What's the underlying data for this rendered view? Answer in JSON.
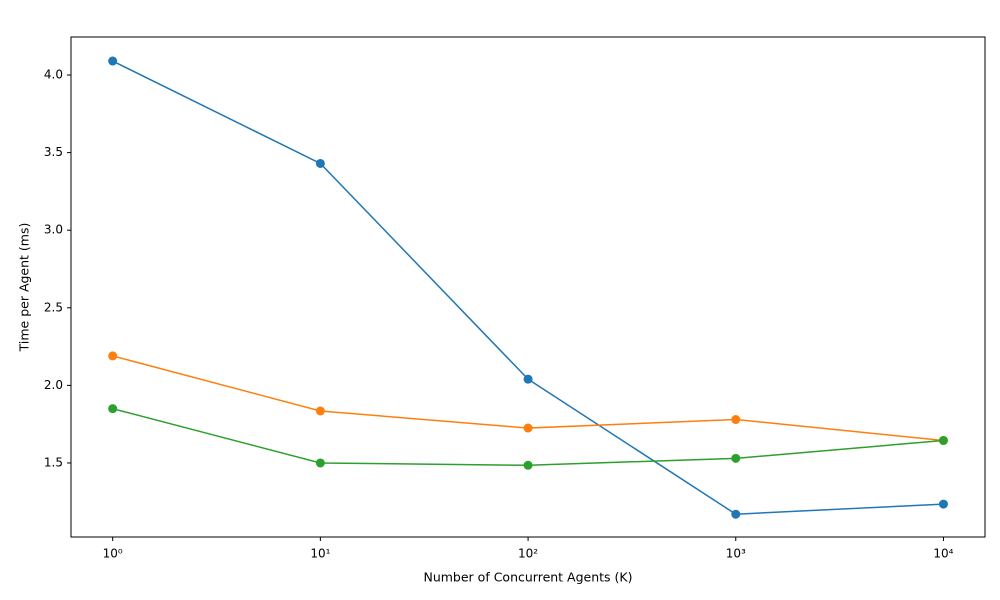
{
  "chart_data": {
    "type": "line",
    "x_label": "Number of Concurrent Agents (K)",
    "y_label": "Time per Agent (ms)",
    "x": [
      1,
      10,
      100,
      1000,
      10000
    ],
    "xscale": "log",
    "xlim": [
      0.63,
      15849
    ],
    "xticks": [
      {
        "value": 1,
        "label": "10⁰"
      },
      {
        "value": 10,
        "label": "10¹"
      },
      {
        "value": 100,
        "label": "10²"
      },
      {
        "value": 1000,
        "label": "10³"
      },
      {
        "value": 10000,
        "label": "10⁴"
      }
    ],
    "ylim": [
      1.023,
      4.245
    ],
    "yticks": [
      1.5,
      {
        "value": 2,
        "label": "2.0"
      },
      2.5,
      {
        "value": 3,
        "label": "3.0"
      },
      3.5,
      {
        "value": 4,
        "label": "4.0"
      }
    ],
    "grid": false,
    "markers": true,
    "series": [
      {
        "color": "#1f77b4",
        "values": [
          4.09,
          3.43,
          2.04,
          1.17,
          1.235
        ]
      },
      {
        "color": "#ff7f0e",
        "values": [
          2.19,
          1.835,
          1.725,
          1.78,
          1.645
        ]
      },
      {
        "color": "#2ca02c",
        "values": [
          1.85,
          1.5,
          1.485,
          1.53,
          1.645
        ]
      }
    ]
  }
}
